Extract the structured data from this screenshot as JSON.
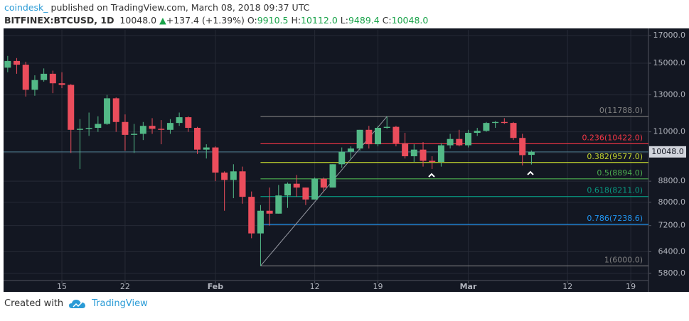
{
  "header": {
    "author": "coindesk_",
    "published": "published on TradingView.com, March 08, 2018 09:37 UTC",
    "symbol": "BITFINEX:BTCUSD, 1D",
    "price": "10048.0",
    "arrow": "▲",
    "change": "+137.4 (+1.39%)",
    "ohlc": [
      {
        "label": "O:",
        "value": "9910.5"
      },
      {
        "label": "H:",
        "value": "10112.0"
      },
      {
        "label": "L:",
        "value": "9489.4"
      },
      {
        "label": "C:",
        "value": "10048.0"
      }
    ]
  },
  "chart_data": {
    "type": "candlestick",
    "log_scale": true,
    "grid": true,
    "up_color": "#53b987",
    "down_color": "#eb4d5c",
    "x": [
      0,
      1,
      2,
      3,
      4,
      5,
      6,
      7,
      8,
      9,
      10,
      11,
      12,
      13,
      14,
      15,
      16,
      17,
      18,
      19,
      20,
      21,
      22,
      23,
      24,
      25,
      26,
      27,
      28,
      29,
      30,
      31,
      32,
      33,
      34,
      35,
      36,
      37,
      38,
      39,
      40,
      41,
      42,
      43,
      44,
      45,
      46,
      47,
      48,
      49,
      50,
      51,
      52,
      53,
      54,
      55,
      56,
      57,
      58
    ],
    "open": [
      14700,
      15150,
      14900,
      13300,
      13900,
      14300,
      13700,
      13600,
      11100,
      11150,
      11200,
      11400,
      12800,
      11500,
      10850,
      10900,
      11300,
      11150,
      11100,
      11450,
      11750,
      11200,
      10150,
      10250,
      9150,
      8850,
      9200,
      8200,
      6950,
      7700,
      7600,
      8250,
      8700,
      8550,
      8100,
      8900,
      8550,
      9500,
      10050,
      10200,
      11100,
      10400,
      11200,
      11250,
      10450,
      9850,
      10150,
      9650,
      9600,
      10350,
      10650,
      10350,
      10950,
      11050,
      11450,
      11500,
      11450,
      10700,
      9910.5
    ],
    "high": [
      15500,
      15350,
      15100,
      14200,
      14650,
      14500,
      14400,
      13650,
      11650,
      12000,
      11800,
      13000,
      12850,
      11900,
      11400,
      11500,
      11700,
      11600,
      11650,
      12000,
      11800,
      11250,
      10400,
      10300,
      9200,
      9500,
      9400,
      8400,
      7900,
      8550,
      8650,
      8750,
      9050,
      8550,
      8950,
      8950,
      9500,
      10250,
      10300,
      11100,
      11300,
      11300,
      11788,
      11300,
      10950,
      10400,
      10500,
      9850,
      10450,
      10900,
      11100,
      11100,
      11200,
      11500,
      11550,
      11700,
      11500,
      10900,
      10112
    ],
    "low": [
      14400,
      14300,
      12900,
      12950,
      13800,
      13100,
      13400,
      10000,
      9300,
      10800,
      11000,
      11350,
      11000,
      10100,
      10000,
      10600,
      10900,
      10400,
      10900,
      11300,
      11000,
      9950,
      9750,
      8800,
      7700,
      8150,
      7950,
      6800,
      6000,
      7200,
      7600,
      7800,
      8200,
      7900,
      8100,
      8400,
      8550,
      9350,
      9700,
      10100,
      10200,
      10300,
      11150,
      10300,
      9750,
      9600,
      9400,
      9300,
      9400,
      10200,
      10300,
      10250,
      10800,
      11000,
      11200,
      11400,
      10600,
      9450,
      9489.4
    ],
    "close": [
      15150,
      14900,
      13300,
      13900,
      14300,
      13700,
      13600,
      11100,
      11150,
      11200,
      11400,
      12800,
      11500,
      10850,
      10900,
      11300,
      11150,
      11100,
      11450,
      11750,
      11200,
      10150,
      10250,
      9150,
      8850,
      9200,
      8200,
      6950,
      7700,
      7600,
      8250,
      8700,
      8550,
      8100,
      8900,
      8550,
      9500,
      10050,
      10200,
      11100,
      10400,
      11200,
      11250,
      10450,
      9850,
      10150,
      9650,
      9600,
      10350,
      10650,
      10350,
      10950,
      11050,
      11450,
      11500,
      11450,
      10700,
      9900,
      10048
    ],
    "xlim": [
      -0.46,
      70.96
    ],
    "xticks": [
      {
        "value": 6,
        "label": "15"
      },
      {
        "value": 13,
        "label": "22"
      },
      {
        "value": 23,
        "label": "Feb"
      },
      {
        "value": 34,
        "label": "12"
      },
      {
        "value": 41,
        "label": "19"
      },
      {
        "value": 51,
        "label": "Mar"
      },
      {
        "value": 62,
        "label": "12"
      },
      {
        "value": 69,
        "label": "19"
      }
    ],
    "ylim": [
      5617,
      17442
    ],
    "yticks": [
      {
        "value": 5800,
        "label": "5800.0"
      },
      {
        "value": 6400,
        "label": "6400.0"
      },
      {
        "value": 7200,
        "label": "7200.0"
      },
      {
        "value": 8000,
        "label": "8000.0"
      },
      {
        "value": 8800,
        "label": "8800.0"
      },
      {
        "value": 10000,
        "label": "10000.0"
      },
      {
        "value": 11000,
        "label": "11000.0"
      },
      {
        "value": 13000,
        "label": "13000.0"
      },
      {
        "value": 15000,
        "label": "15000.0"
      },
      {
        "value": 17000,
        "label": "17000.0"
      }
    ],
    "last_price": {
      "value": 10048,
      "label": "10048.0",
      "color": "#4b7a8c"
    },
    "fib_start": 28,
    "levels": [
      {
        "label": "0(11788.0)",
        "value": 11788,
        "color": "#808080"
      },
      {
        "label": "0.236(10422.0)",
        "value": 10422,
        "color": "#f23645"
      },
      {
        "label": "0.382(9577.0)",
        "value": 9577,
        "color": "#c3d52f"
      },
      {
        "label": "0.5(8894.0)",
        "value": 8894,
        "color": "#4caf50"
      },
      {
        "label": "0.618(8211.0)",
        "value": 8211,
        "color": "#089981"
      },
      {
        "label": "0.786(7238.6)",
        "value": 7238.6,
        "color": "#2196f3"
      },
      {
        "label": "1(6000.0)",
        "value": 6000,
        "color": "#808080"
      }
    ],
    "trendline": {
      "x": [
        28,
        42
      ],
      "y": [
        6000,
        11788
      ],
      "color": "#9598a1"
    }
  },
  "footer": {
    "created": "Created with",
    "brand": "TradingView"
  }
}
